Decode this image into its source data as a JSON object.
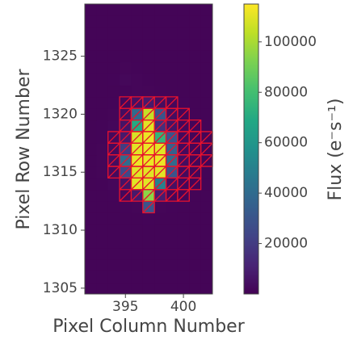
{
  "chart_data": {
    "type": "heatmap",
    "colormap": "viridis",
    "x_label": "Pixel Column Number",
    "y_label": "Pixel Row Number",
    "colorbar_label": "Flux (e⁻s⁻¹)",
    "x": [
      392,
      393,
      394,
      395,
      396,
      397,
      398,
      399,
      400,
      401,
      402
    ],
    "y": [
      1305,
      1306,
      1307,
      1308,
      1309,
      1310,
      1311,
      1312,
      1313,
      1314,
      1315,
      1316,
      1317,
      1318,
      1319,
      1320,
      1321,
      1322,
      1323,
      1324,
      1325,
      1326,
      1327,
      1328,
      1329
    ],
    "xlim": [
      391.5,
      402.5
    ],
    "ylim": [
      1304.5,
      1329.5
    ],
    "xticks": [
      395,
      400
    ],
    "yticks": [
      1305,
      1310,
      1315,
      1320,
      1325
    ],
    "clim": [
      0,
      115000
    ],
    "cticks": [
      20000,
      40000,
      60000,
      80000,
      100000
    ],
    "mask_color": "#e8112d",
    "z": [
      [
        1200,
        1200,
        1200,
        1200,
        1200,
        1200,
        1200,
        1200,
        1200,
        1200,
        1200
      ],
      [
        1200,
        1200,
        1200,
        1200,
        1200,
        1200,
        1200,
        1200,
        1200,
        1200,
        1200
      ],
      [
        1200,
        1200,
        1200,
        1200,
        1200,
        1200,
        1200,
        1200,
        1200,
        1200,
        1200
      ],
      [
        1200,
        1200,
        1200,
        1200,
        1200,
        1200,
        1200,
        1200,
        1200,
        1200,
        1200
      ],
      [
        1200,
        1200,
        1200,
        1200,
        1200,
        1200,
        1200,
        1200,
        1200,
        1200,
        1200
      ],
      [
        1200,
        1200,
        1200,
        1200,
        1200,
        1200,
        1200,
        1200,
        1200,
        1200,
        1200
      ],
      [
        1200,
        1200,
        1200,
        1200,
        1200,
        1300,
        1200,
        1200,
        1200,
        1200,
        1200
      ],
      [
        1200,
        1200,
        1200,
        1300,
        1500,
        30000,
        1500,
        1300,
        1200,
        1200,
        1200
      ],
      [
        1200,
        1200,
        1300,
        2000,
        8000,
        95000,
        9000,
        2000,
        1300,
        1200,
        1200
      ],
      [
        1200,
        1300,
        2000,
        6000,
        110000,
        110000,
        50000,
        5000,
        2000,
        1300,
        1200
      ],
      [
        1200,
        1500,
        3000,
        25000,
        110000,
        110000,
        110000,
        30000,
        3000,
        1500,
        1200
      ],
      [
        1200,
        1500,
        3500,
        40000,
        112000,
        112000,
        112000,
        40000,
        4000,
        1500,
        1200
      ],
      [
        1200,
        1500,
        3000,
        20000,
        110000,
        112000,
        110000,
        35000,
        3000,
        1500,
        1200
      ],
      [
        1200,
        1300,
        2500,
        8000,
        108000,
        112000,
        75000,
        30000,
        2500,
        1300,
        1200
      ],
      [
        1200,
        1300,
        2000,
        6000,
        70000,
        110000,
        15000,
        6000,
        2000,
        1300,
        1200
      ],
      [
        1200,
        1200,
        1500,
        4000,
        40000,
        105000,
        30000,
        4000,
        1500,
        1200,
        1200
      ],
      [
        1200,
        1200,
        1300,
        2000,
        5000,
        8000,
        4000,
        2000,
        1300,
        1200,
        1200
      ],
      [
        1200,
        1200,
        1200,
        1400,
        1600,
        1500,
        1300,
        1200,
        1200,
        1200,
        1200
      ],
      [
        1200,
        1200,
        1300,
        2200,
        1600,
        1400,
        1200,
        1200,
        1200,
        1200,
        1200
      ],
      [
        1200,
        1200,
        1200,
        1500,
        1300,
        1200,
        1200,
        1200,
        1200,
        1200,
        1200
      ],
      [
        1200,
        1200,
        1200,
        1200,
        1200,
        1200,
        1200,
        1200,
        1200,
        1200,
        1200
      ],
      [
        1200,
        1200,
        1200,
        1200,
        1200,
        1200,
        1200,
        1200,
        1200,
        1200,
        1200
      ],
      [
        1200,
        1200,
        1200,
        1200,
        1200,
        1200,
        1200,
        1200,
        1200,
        1200,
        1200
      ],
      [
        1200,
        1200,
        1200,
        1200,
        1200,
        1200,
        1200,
        1200,
        1200,
        1200,
        1200
      ],
      [
        1200,
        1200,
        1200,
        1200,
        1200,
        1200,
        1200,
        1200,
        1200,
        1200,
        1200
      ]
    ],
    "aperture_mask": [
      [
        0,
        0,
        0,
        0,
        0,
        0,
        0,
        0,
        0,
        0,
        0
      ],
      [
        0,
        0,
        0,
        0,
        0,
        0,
        0,
        0,
        0,
        0,
        0
      ],
      [
        0,
        0,
        0,
        0,
        0,
        0,
        0,
        0,
        0,
        0,
        0
      ],
      [
        0,
        0,
        0,
        0,
        0,
        0,
        0,
        0,
        0,
        0,
        0
      ],
      [
        0,
        0,
        0,
        0,
        0,
        0,
        0,
        0,
        0,
        0,
        0
      ],
      [
        0,
        0,
        0,
        0,
        0,
        0,
        0,
        0,
        0,
        0,
        0
      ],
      [
        0,
        0,
        0,
        0,
        0,
        0,
        0,
        0,
        0,
        0,
        0
      ],
      [
        0,
        0,
        0,
        0,
        0,
        1,
        0,
        0,
        0,
        0,
        0
      ],
      [
        0,
        0,
        0,
        1,
        1,
        1,
        1,
        1,
        1,
        0,
        0
      ],
      [
        0,
        0,
        0,
        1,
        1,
        1,
        1,
        1,
        1,
        1,
        0
      ],
      [
        0,
        0,
        1,
        1,
        1,
        1,
        1,
        1,
        1,
        1,
        0
      ],
      [
        0,
        0,
        1,
        1,
        1,
        1,
        1,
        1,
        1,
        1,
        1
      ],
      [
        0,
        0,
        1,
        1,
        1,
        1,
        1,
        1,
        1,
        1,
        1
      ],
      [
        0,
        0,
        1,
        1,
        1,
        1,
        1,
        1,
        1,
        1,
        1
      ],
      [
        0,
        0,
        0,
        1,
        1,
        1,
        1,
        1,
        1,
        1,
        0
      ],
      [
        0,
        0,
        0,
        1,
        1,
        1,
        1,
        1,
        1,
        0,
        0
      ],
      [
        0,
        0,
        0,
        1,
        1,
        1,
        1,
        1,
        0,
        0,
        0
      ],
      [
        0,
        0,
        0,
        0,
        0,
        0,
        0,
        0,
        0,
        0,
        0
      ],
      [
        0,
        0,
        0,
        0,
        0,
        0,
        0,
        0,
        0,
        0,
        0
      ],
      [
        0,
        0,
        0,
        0,
        0,
        0,
        0,
        0,
        0,
        0,
        0
      ],
      [
        0,
        0,
        0,
        0,
        0,
        0,
        0,
        0,
        0,
        0,
        0
      ],
      [
        0,
        0,
        0,
        0,
        0,
        0,
        0,
        0,
        0,
        0,
        0
      ],
      [
        0,
        0,
        0,
        0,
        0,
        0,
        0,
        0,
        0,
        0,
        0
      ],
      [
        0,
        0,
        0,
        0,
        0,
        0,
        0,
        0,
        0,
        0,
        0
      ],
      [
        0,
        0,
        0,
        0,
        0,
        0,
        0,
        0,
        0,
        0,
        0
      ]
    ]
  }
}
